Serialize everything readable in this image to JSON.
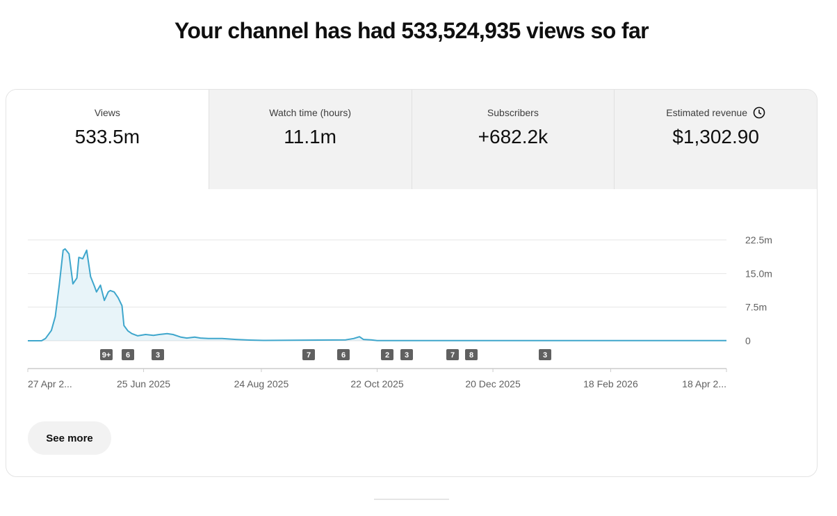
{
  "header": {
    "title": "Your channel has had 533,524,935 views so far"
  },
  "tabs": [
    {
      "label": "Views",
      "value": "533.5m"
    },
    {
      "label": "Watch time (hours)",
      "value": "11.1m"
    },
    {
      "label": "Subscribers",
      "value": "+682.2k"
    },
    {
      "label": "Estimated revenue",
      "value": "$1,302.90"
    }
  ],
  "chart_data": {
    "type": "line",
    "x": [
      "2025-04-27",
      "2025-05-04",
      "2025-05-06",
      "2025-05-09",
      "2025-05-11",
      "2025-05-13",
      "2025-05-15",
      "2025-05-16",
      "2025-05-18",
      "2025-05-20",
      "2025-05-22",
      "2025-05-23",
      "2025-05-25",
      "2025-05-27",
      "2025-05-29",
      "2025-05-31",
      "2025-06-01",
      "2025-06-03",
      "2025-06-05",
      "2025-06-07",
      "2025-06-08",
      "2025-06-10",
      "2025-06-12",
      "2025-06-14",
      "2025-06-15",
      "2025-06-17",
      "2025-06-19",
      "2025-06-22",
      "2025-06-26",
      "2025-06-30",
      "2025-07-03",
      "2025-07-07",
      "2025-07-10",
      "2025-07-14",
      "2025-07-17",
      "2025-07-21",
      "2025-07-24",
      "2025-07-28",
      "2025-08-04",
      "2025-08-11",
      "2025-08-18",
      "2025-08-25",
      "2025-10-06",
      "2025-10-10",
      "2025-10-13",
      "2025-10-15",
      "2025-10-19",
      "2025-10-22",
      "2026-04-18"
    ],
    "values": [
      0,
      0,
      0.5,
      2.3,
      5.4,
      12.4,
      20.2,
      20.5,
      19.4,
      12.7,
      14,
      18.6,
      18.3,
      20.2,
      14.3,
      12.1,
      10.9,
      12.4,
      9,
      10.9,
      11.2,
      10.9,
      9.6,
      7.8,
      3.4,
      2.2,
      1.6,
      1.1,
      1.4,
      1.2,
      1.4,
      1.6,
      1.4,
      0.8,
      0.6,
      0.8,
      0.6,
      0.5,
      0.5,
      0.3,
      0.15,
      0.08,
      0.2,
      0.5,
      0.9,
      0.3,
      0.2,
      0.05,
      0.03
    ],
    "color": "#3ea6cc",
    "xlim": [
      "2025-04-27",
      "2026-04-18"
    ],
    "xticks": [
      {
        "value": "2025-04-27",
        "label": "27 Apr 2..."
      },
      {
        "value": "2025-06-25",
        "label": "25 Jun 2025"
      },
      {
        "value": "2025-08-24",
        "label": "24 Aug 2025"
      },
      {
        "value": "2025-10-22",
        "label": "22 Oct 2025"
      },
      {
        "value": "2025-12-20",
        "label": "20 Dec 2025"
      },
      {
        "value": "2026-02-18",
        "label": "18 Feb 2026"
      },
      {
        "value": "2026-04-18",
        "label": "18 Apr 2..."
      }
    ],
    "ylim": [
      0,
      22.5
    ],
    "yticks": [
      0,
      {
        "value": 7.5,
        "label": "7.5m"
      },
      {
        "value": 15,
        "label": "15.0m"
      },
      {
        "value": 22.5,
        "label": "22.5m"
      }
    ],
    "grid": true,
    "events": [
      "9+",
      "6",
      "3",
      "7",
      "6",
      "2",
      "3",
      "7",
      "8",
      "3"
    ]
  },
  "button": "See more"
}
